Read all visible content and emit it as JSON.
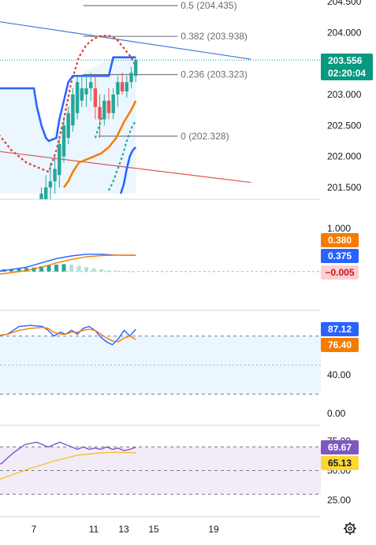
{
  "chart_data": [
    {
      "type": "candlestick",
      "panel": "price",
      "ylim": [
        201.4,
        204.5
      ],
      "y_ticks": [
        "204.500",
        "204.000",
        "203.000",
        "202.500",
        "202.000",
        "201.500"
      ],
      "last_price": "203.556",
      "countdown": "02:20:04",
      "fib_levels": [
        {
          "label": "0.5 (204.435)",
          "value": 204.435
        },
        {
          "label": "0.382 (203.938)",
          "value": 203.938
        },
        {
          "label": "0.236 (203.323)",
          "value": 203.323
        },
        {
          "label": "0 (202.328)",
          "value": 202.328
        }
      ],
      "trendlines": [
        {
          "color": "#3c78d8",
          "from": [
            -1.0,
            204.38
          ],
          "to": [
            21.5,
            203.57
          ]
        },
        {
          "color": "#e05555",
          "from": [
            -1.0,
            202.25
          ],
          "to": [
            21.5,
            201.58
          ]
        }
      ],
      "candles": [
        {
          "x": 7.5,
          "o": 201.0,
          "h": 201.5,
          "l": 200.8,
          "c": 201.4,
          "up": true
        },
        {
          "x": 7.8,
          "o": 201.3,
          "h": 201.7,
          "l": 201.1,
          "c": 201.5,
          "up": true
        },
        {
          "x": 8.1,
          "o": 201.5,
          "h": 201.9,
          "l": 201.3,
          "c": 201.6,
          "up": true
        },
        {
          "x": 8.4,
          "o": 201.6,
          "h": 202.0,
          "l": 201.4,
          "c": 201.8,
          "up": true
        },
        {
          "x": 8.7,
          "o": 201.7,
          "h": 202.3,
          "l": 201.5,
          "c": 202.2,
          "up": true
        },
        {
          "x": 9.0,
          "o": 202.0,
          "h": 202.6,
          "l": 201.9,
          "c": 202.5,
          "up": true
        },
        {
          "x": 9.3,
          "o": 202.3,
          "h": 202.8,
          "l": 202.2,
          "c": 202.7,
          "up": true
        },
        {
          "x": 9.6,
          "o": 202.5,
          "h": 203.1,
          "l": 202.4,
          "c": 203.0,
          "up": true
        },
        {
          "x": 9.9,
          "o": 202.7,
          "h": 203.3,
          "l": 202.6,
          "c": 203.2,
          "up": true
        },
        {
          "x": 10.2,
          "o": 202.9,
          "h": 203.3,
          "l": 202.8,
          "c": 203.1,
          "up": true
        },
        {
          "x": 10.5,
          "o": 203.0,
          "h": 203.3,
          "l": 202.8,
          "c": 203.1,
          "up": true
        },
        {
          "x": 10.8,
          "o": 203.1,
          "h": 203.35,
          "l": 202.9,
          "c": 203.2,
          "up": true
        },
        {
          "x": 11.1,
          "o": 203.1,
          "h": 203.3,
          "l": 202.6,
          "c": 202.8,
          "up": false
        },
        {
          "x": 11.4,
          "o": 202.8,
          "h": 203.0,
          "l": 202.3,
          "c": 202.6,
          "up": false
        },
        {
          "x": 11.7,
          "o": 202.6,
          "h": 203.0,
          "l": 202.5,
          "c": 202.9,
          "up": true
        },
        {
          "x": 12.0,
          "o": 202.9,
          "h": 203.1,
          "l": 202.6,
          "c": 202.7,
          "up": false
        },
        {
          "x": 12.3,
          "o": 202.7,
          "h": 203.1,
          "l": 202.6,
          "c": 203.0,
          "up": true
        },
        {
          "x": 12.6,
          "o": 203.0,
          "h": 203.3,
          "l": 202.8,
          "c": 203.2,
          "up": true
        },
        {
          "x": 12.9,
          "o": 203.2,
          "h": 203.35,
          "l": 203.0,
          "c": 203.05,
          "up": false
        },
        {
          "x": 13.2,
          "o": 203.05,
          "h": 203.3,
          "l": 202.95,
          "c": 203.2,
          "up": true
        },
        {
          "x": 13.5,
          "o": 203.2,
          "h": 203.45,
          "l": 203.1,
          "c": 203.35,
          "up": true
        },
        {
          "x": 13.8,
          "o": 203.3,
          "h": 203.6,
          "l": 203.2,
          "c": 203.556,
          "up": true
        }
      ],
      "series": [
        {
          "style": "dotted-red",
          "x": [
            -0.5,
            0.5,
            1.5,
            2.5,
            3.5,
            4.5,
            5.5,
            6.5,
            7.5,
            8.0,
            8.5,
            9.0,
            9.5,
            10.0,
            10.5,
            11.0,
            11.5,
            12.0,
            12.5,
            13.0,
            13.5,
            13.8
          ],
          "y": [
            203.9,
            203.6,
            203.3,
            203.0,
            202.7,
            202.4,
            202.1,
            201.9,
            201.8,
            201.75,
            202.1,
            202.6,
            203.2,
            203.6,
            203.8,
            203.9,
            203.95,
            203.95,
            203.9,
            203.75,
            203.6,
            203.45
          ]
        },
        {
          "style": "dotted-green",
          "x": [
            11.1,
            11.3,
            11.5,
            11.7
          ],
          "y": [
            202.3,
            202.45,
            202.6,
            202.7
          ]
        },
        {
          "style": "dotted-green",
          "x": [
            12.0,
            12.3,
            12.6,
            12.9,
            13.2,
            13.5,
            13.8
          ],
          "y": [
            201.45,
            201.6,
            201.8,
            202.0,
            202.25,
            202.45,
            202.58
          ]
        },
        {
          "style": "solid-orange",
          "x": [
            9.0,
            9.3,
            9.6,
            10.0,
            10.5,
            11.0,
            11.5,
            12.0,
            12.5,
            13.0,
            13.5,
            13.8
          ],
          "y": [
            201.5,
            201.6,
            201.75,
            201.9,
            201.95,
            202.0,
            202.05,
            202.15,
            202.3,
            202.55,
            202.75,
            202.9
          ]
        },
        {
          "style": "solid-blue-lower",
          "x": [
            12.8,
            13.0,
            13.2,
            13.4,
            13.6,
            13.8
          ],
          "y": [
            201.4,
            201.55,
            201.8,
            202.0,
            202.1,
            202.15
          ]
        },
        {
          "style": "solid-blue-upper",
          "x": [
            -1.0,
            7.0,
            7.2,
            7.5,
            7.8,
            8.0,
            8.5,
            8.7,
            9.0,
            9.3,
            9.6,
            9.8,
            10.2,
            12.0,
            12.3,
            13.6,
            13.8
          ],
          "y": [
            203.1,
            203.1,
            202.8,
            202.5,
            202.3,
            202.25,
            202.3,
            202.6,
            202.9,
            203.2,
            203.3,
            203.3,
            203.3,
            203.3,
            203.6,
            203.6,
            203.6
          ]
        }
      ],
      "band": {
        "x": [
          -1.0,
          7.0,
          8.0,
          8.7,
          9.8,
          12.3,
          13.8
        ],
        "upper": [
          203.1,
          203.1,
          202.25,
          202.6,
          203.3,
          203.6,
          203.6
        ],
        "lower": [
          201.4,
          201.4,
          201.4,
          201.4,
          201.4,
          201.4,
          201.4
        ]
      }
    },
    {
      "type": "macd",
      "panel": "macd",
      "ylim": [
        -0.22,
        1.25
      ],
      "y_ticks": [
        "1.000"
      ],
      "labels": [
        {
          "text": "0.380",
          "bg": "#f57c00",
          "fg": "#ffffff"
        },
        {
          "text": "0.375",
          "bg": "#2962ff",
          "fg": "#ffffff"
        },
        {
          "text": "−0.005",
          "bg": "#ffcdd2",
          "fg": "#b71c1c"
        }
      ],
      "histogram": {
        "x": [
          0.0,
          0.5,
          1.0,
          1.5,
          2.0,
          2.5,
          3.0,
          3.5,
          4.0,
          4.5,
          5.0,
          5.5,
          6.0,
          6.5,
          7.0,
          7.5,
          8.0,
          8.5,
          9.0,
          9.5,
          10.0,
          10.5,
          11.0,
          11.5,
          12.0,
          12.5,
          13.0,
          13.5
        ],
        "y": [
          0.02,
          0.02,
          0.03,
          0.03,
          0.03,
          0.03,
          0.04,
          0.04,
          0.05,
          0.05,
          0.05,
          0.06,
          0.07,
          0.08,
          0.09,
          0.12,
          0.14,
          0.16,
          0.17,
          0.16,
          0.13,
          0.1,
          0.07,
          0.05,
          0.03,
          0.02,
          0.01,
          -0.005
        ]
      },
      "series": [
        {
          "name": "macd",
          "color": "#2962ff",
          "x": [
            -1.0,
            1.0,
            3.0,
            5.0,
            6.5,
            7.5,
            8.5,
            9.5,
            10.5,
            11.5,
            12.5,
            13.8
          ],
          "y": [
            -0.15,
            -0.1,
            -0.05,
            0.02,
            0.1,
            0.2,
            0.3,
            0.36,
            0.4,
            0.4,
            0.38,
            0.375
          ]
        },
        {
          "name": "signal",
          "color": "#f57c00",
          "x": [
            -1.0,
            1.0,
            3.0,
            5.0,
            6.5,
            7.5,
            8.5,
            9.5,
            10.5,
            11.5,
            12.5,
            13.8
          ],
          "y": [
            -0.2,
            -0.15,
            -0.1,
            -0.05,
            0.02,
            0.1,
            0.2,
            0.28,
            0.34,
            0.37,
            0.38,
            0.38
          ]
        }
      ]
    },
    {
      "type": "stochastic",
      "panel": "stoch",
      "ylim": [
        -5,
        100
      ],
      "y_ticks": [
        "40.00",
        "0.00"
      ],
      "levels": [
        80,
        20
      ],
      "labels": [
        {
          "text": "87.12",
          "bg": "#2962ff",
          "fg": "#ffffff"
        },
        {
          "text": "76.40",
          "bg": "#f57c00",
          "fg": "#ffffff"
        }
      ],
      "series": [
        {
          "name": "%K",
          "color": "#2962ff",
          "x": [
            -1.0,
            0.0,
            1.0,
            1.5,
            2.0,
            3.0,
            4.0,
            5.0,
            5.5,
            6.0,
            7.0,
            8.0,
            9.0,
            10.0,
            10.5,
            11.0,
            11.5,
            12.0,
            12.5,
            13.0,
            13.5,
            14.0,
            14.5,
            15.0,
            15.5,
            16.0,
            16.5,
            17.0,
            17.5,
            18.0
          ],
          "y": [
            25,
            35,
            45,
            55,
            60,
            65,
            68,
            78,
            82,
            80,
            82,
            90,
            91,
            90,
            86,
            80,
            84,
            82,
            86,
            82,
            88,
            90,
            86,
            79,
            74,
            71,
            77,
            86,
            80,
            87.12
          ]
        },
        {
          "name": "%D",
          "color": "#f57c00",
          "x": [
            -1.0,
            0.0,
            1.0,
            1.5,
            2.0,
            3.0,
            4.0,
            5.0,
            5.5,
            6.0,
            7.0,
            8.0,
            9.0,
            10.0,
            10.5,
            11.0,
            11.5,
            12.0,
            12.5,
            13.0,
            13.5,
            14.0,
            14.5,
            15.0,
            15.5,
            16.0,
            16.5,
            17.0,
            17.5,
            18.0
          ],
          "y": [
            15,
            28,
            38,
            47,
            55,
            60,
            64,
            72,
            78,
            80,
            82,
            86,
            88,
            89,
            88,
            84,
            82,
            82,
            84,
            84,
            86,
            87,
            86,
            82,
            78,
            75,
            74,
            78,
            80,
            76.4
          ]
        }
      ]
    },
    {
      "type": "rsi",
      "panel": "rsi",
      "ylim": [
        20,
        80
      ],
      "y_ticks": [
        "75.00",
        "50.00",
        "25.00"
      ],
      "levels": [
        70,
        50,
        30
      ],
      "labels": [
        {
          "text": "69.67",
          "bg": "#7e57c2",
          "fg": "#ffffff"
        },
        {
          "text": "65.13",
          "bg": "#fdd835",
          "fg": "#131722"
        }
      ],
      "series": [
        {
          "name": "rsi",
          "color": "#7e57c2",
          "x": [
            -1.0,
            0.5,
            1.5,
            2.5,
            3.5,
            4.5,
            5.5,
            6.5,
            7.5,
            8.5,
            9.5,
            10.5,
            11.5,
            12.0,
            12.5,
            13.0,
            13.5,
            14.0,
            14.5,
            15.0,
            15.5,
            16.0,
            16.5,
            17.0,
            17.5,
            18.0
          ],
          "y": [
            48,
            49,
            50,
            48,
            52,
            50,
            54,
            56,
            65,
            72,
            74,
            70,
            74,
            72,
            70,
            68,
            70,
            68,
            69,
            68,
            70,
            68,
            69,
            67,
            68,
            69.67
          ]
        },
        {
          "name": "rsi-ma",
          "color": "#fbc02d",
          "x": [
            -1.0,
            1.0,
            3.0,
            5.0,
            7.0,
            9.0,
            11.0,
            13.0,
            15.0,
            16.0,
            17.0,
            18.0
          ],
          "y": [
            36,
            35,
            34,
            38,
            45,
            52,
            58,
            63,
            65,
            65.5,
            65.3,
            65.13
          ]
        }
      ]
    }
  ],
  "x_axis": {
    "ticks": [
      {
        "label": "7",
        "x": 7
      },
      {
        "label": "11",
        "x": 11
      },
      {
        "label": "13",
        "x": 13
      },
      {
        "label": "15",
        "x": 15
      },
      {
        "label": "19",
        "x": 19
      }
    ]
  },
  "settings_icon": "gear-icon",
  "colors": {
    "up": "#26a69a",
    "down": "#ef5350",
    "price_tag": "#089981",
    "grid": "#e0e3eb"
  }
}
